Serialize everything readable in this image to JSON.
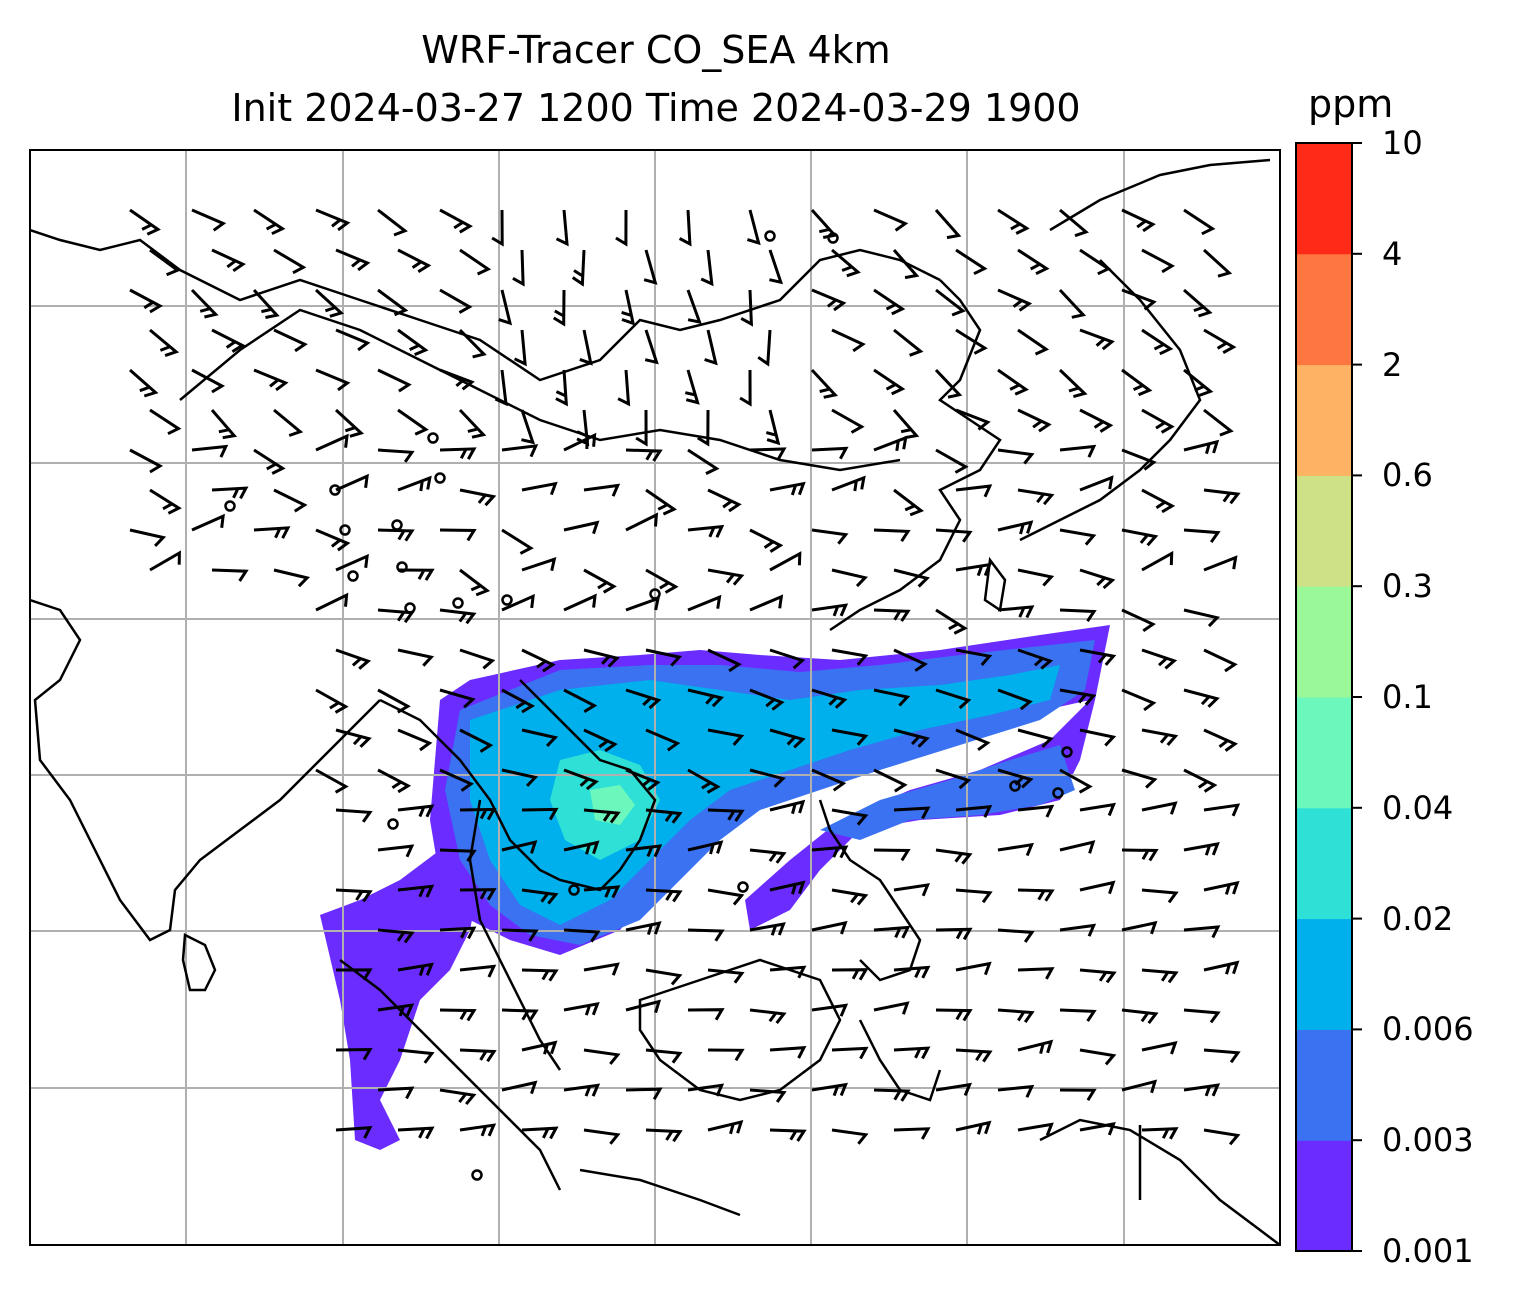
{
  "title": {
    "line1": "WRF-Tracer CO_SEA 4km",
    "line2": "Init 2024-03-27 1200 Time 2024-03-29 1900"
  },
  "colorbar": {
    "unit": "ppm",
    "levels": [
      "0.001",
      "0.003",
      "0.006",
      "0.02",
      "0.04",
      "0.1",
      "0.3",
      "0.6",
      "2",
      "4",
      "10"
    ],
    "colors": [
      "#6a2cff",
      "#3a72f2",
      "#00b0ec",
      "#2ee0d6",
      "#6cf8bc",
      "#9af898",
      "#cfe187",
      "#fdb363",
      "#fe7640",
      "#ff2b18"
    ]
  },
  "map": {
    "field": "CO tracer concentration with wind barbs",
    "gridlines": true,
    "calm_markers": "circles"
  }
}
